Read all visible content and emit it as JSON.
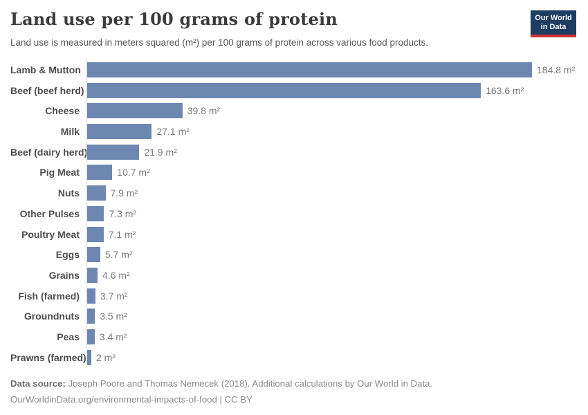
{
  "header": {
    "title": "Land use per 100 grams of protein",
    "subtitle": "Land use is measured in meters squared (m²) per 100 grams of protein across various food products.",
    "logo": {
      "line1": "Our World",
      "line2": "in Data"
    }
  },
  "chart_data": {
    "type": "bar",
    "orientation": "horizontal",
    "title": "Land use per 100 grams of protein",
    "unit": "m²",
    "xlim": [
      0,
      184.8
    ],
    "grid": false,
    "bar_color": "#6d87b1",
    "categories": [
      "Lamb & Mutton",
      "Beef (beef herd)",
      "Cheese",
      "Milk",
      "Beef (dairy herd)",
      "Pig Meat",
      "Nuts",
      "Other Pulses",
      "Poultry Meat",
      "Eggs",
      "Grains",
      "Fish (farmed)",
      "Groundnuts",
      "Peas",
      "Prawns (farmed)"
    ],
    "values": [
      184.8,
      163.6,
      39.8,
      27.1,
      21.9,
      10.7,
      7.9,
      7.3,
      7.1,
      5.7,
      4.6,
      3.7,
      3.5,
      3.4,
      2
    ],
    "value_labels": [
      "184.8 m²",
      "163.6 m²",
      "39.8 m²",
      "27.1 m²",
      "21.9 m²",
      "10.7 m²",
      "7.9 m²",
      "7.3 m²",
      "7.1 m²",
      "5.7 m²",
      "4.6 m²",
      "3.7 m²",
      "3.5 m²",
      "3.4 m²",
      "2 m²"
    ]
  },
  "footer": {
    "source_label": "Data source:",
    "source_text": " Joseph Poore and Thomas Nemecek (2018). Additional calculations by Our World in Data.",
    "link_line": "OurWorldinData.org/environmental-impacts-of-food | CC BY"
  }
}
